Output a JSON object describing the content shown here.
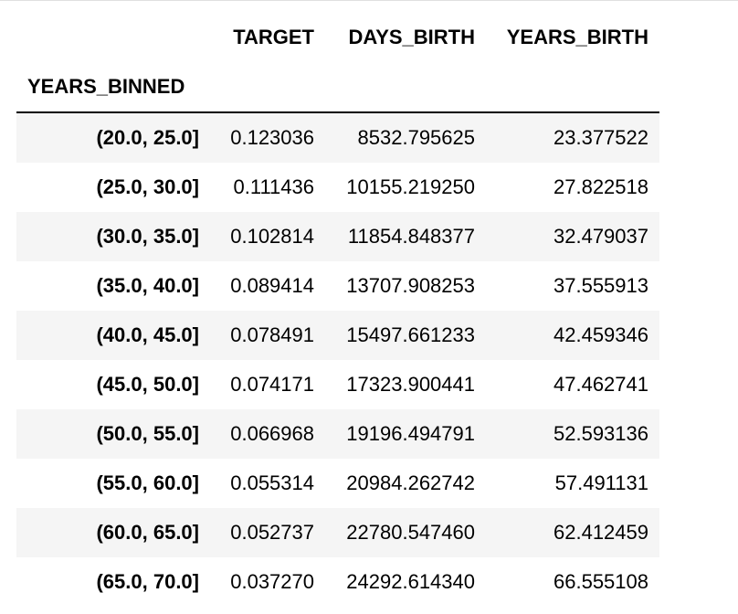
{
  "table": {
    "columns": [
      "TARGET",
      "DAYS_BIRTH",
      "YEARS_BIRTH"
    ],
    "index_name": "YEARS_BINNED",
    "rows": [
      {
        "index": "(20.0, 25.0]",
        "values": [
          "0.123036",
          "8532.795625",
          "23.377522"
        ]
      },
      {
        "index": "(25.0, 30.0]",
        "values": [
          "0.111436",
          "10155.219250",
          "27.822518"
        ]
      },
      {
        "index": "(30.0, 35.0]",
        "values": [
          "0.102814",
          "11854.848377",
          "32.479037"
        ]
      },
      {
        "index": "(35.0, 40.0]",
        "values": [
          "0.089414",
          "13707.908253",
          "37.555913"
        ]
      },
      {
        "index": "(40.0, 45.0]",
        "values": [
          "0.078491",
          "15497.661233",
          "42.459346"
        ]
      },
      {
        "index": "(45.0, 50.0]",
        "values": [
          "0.074171",
          "17323.900441",
          "47.462741"
        ]
      },
      {
        "index": "(50.0, 55.0]",
        "values": [
          "0.066968",
          "19196.494791",
          "52.593136"
        ]
      },
      {
        "index": "(55.0, 60.0]",
        "values": [
          "0.055314",
          "20984.262742",
          "57.491131"
        ]
      },
      {
        "index": "(60.0, 65.0]",
        "values": [
          "0.052737",
          "22780.547460",
          "62.412459"
        ]
      },
      {
        "index": "(65.0, 70.0]",
        "values": [
          "0.037270",
          "24292.614340",
          "66.555108"
        ]
      }
    ]
  }
}
